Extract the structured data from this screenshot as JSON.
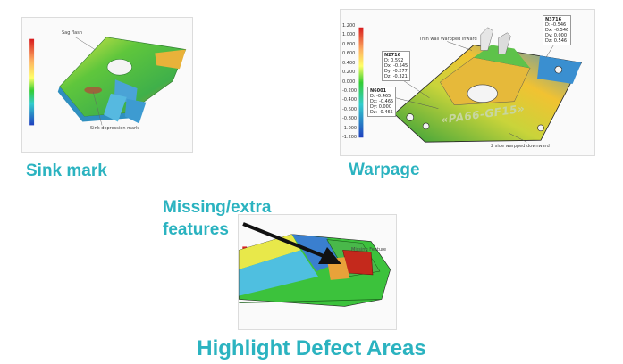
{
  "panels": {
    "sink_mark": {
      "caption": "Sink mark",
      "annot_top": "Sag flash",
      "annot_bottom": "Sink depression mark"
    },
    "warpage": {
      "caption": "Warpage",
      "scale": [
        "1.200",
        "1.000",
        "0.800",
        "0.600",
        "0.400",
        "0.200",
        "0.000",
        "-0.200",
        "-0.400",
        "-0.600",
        "-0.800",
        "-1.000",
        "-1.200"
      ],
      "legend_top": {
        "title": "N3716",
        "rows": [
          "D: -0.546",
          "Dx: -0.546",
          "Dy: 0.000",
          "Dz: 0.546"
        ]
      },
      "legend_left": {
        "title": "N2716",
        "rows": [
          "D: 0.592",
          "Dx: -0.545",
          "Dy: -0.277",
          "Dz: -0.321"
        ]
      },
      "legend_mid": {
        "title": "N6001",
        "rows": [
          "D: -0.465",
          "Dx: -0.465",
          "Dy: 0.000",
          "Dz: -0.465"
        ]
      },
      "annot_top": "Thin wall Warpped inward",
      "annot_bottom": "2 side warpped downward",
      "part_text": "«PA66-GF15»"
    },
    "missing": {
      "callout_line1": "Missing/extra",
      "callout_line2": "features",
      "annot": "Missing Feature",
      "arrow_icon": "black-arrow"
    }
  },
  "footer": {
    "title": "Highlight Defect Areas"
  },
  "colors": {
    "caption": "#2bb3c0",
    "arrow": "#111111"
  }
}
